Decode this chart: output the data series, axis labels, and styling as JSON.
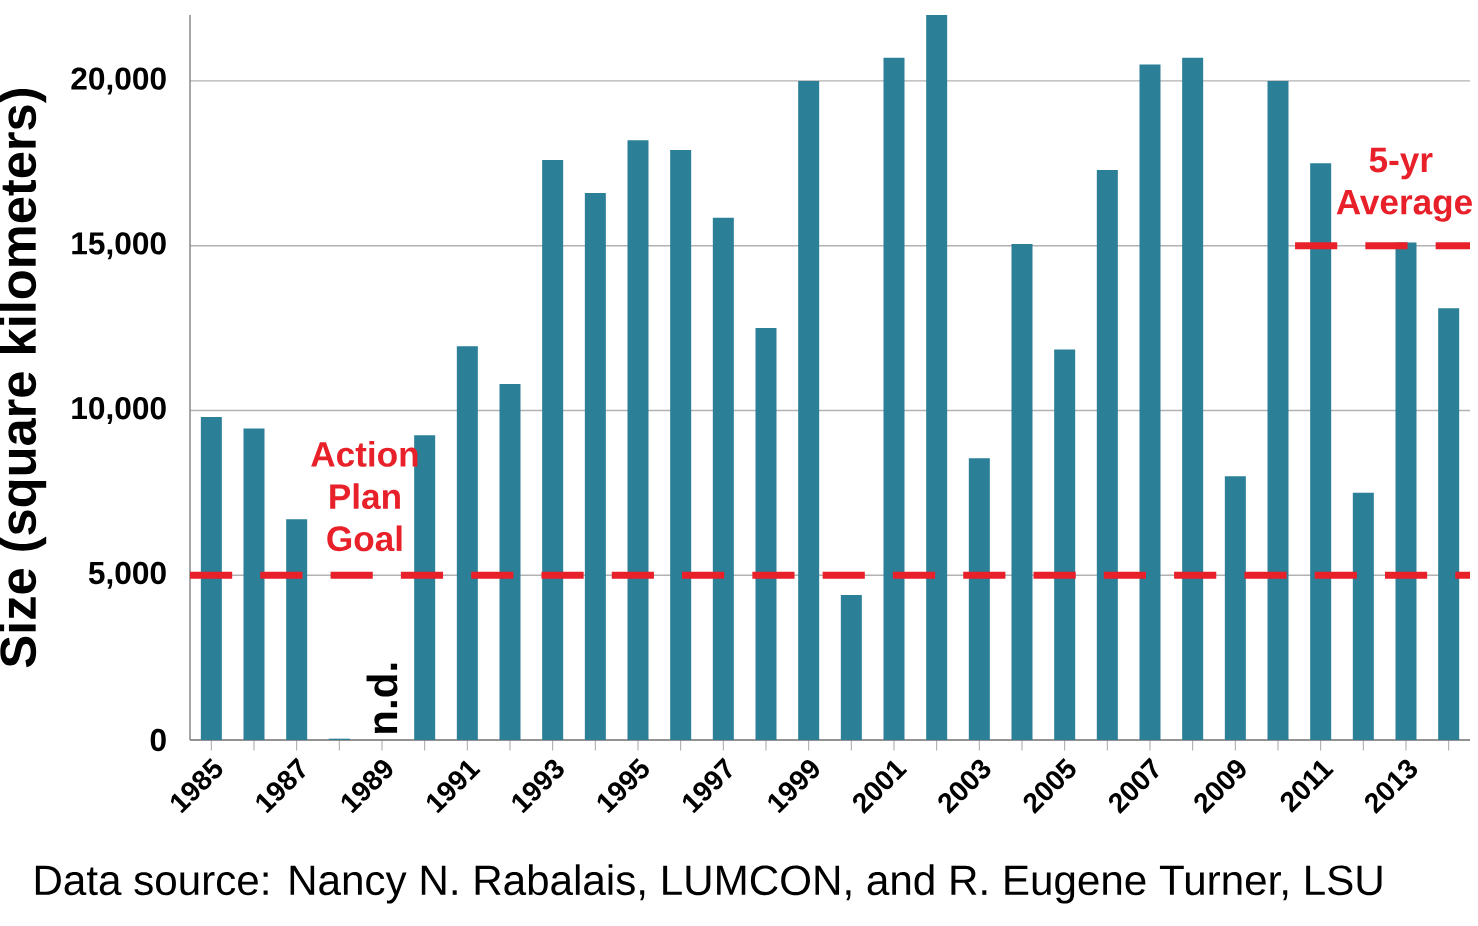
{
  "chart_data": {
    "type": "bar",
    "ylabel": "Size (square kilometers)",
    "categories": [
      "1985",
      null,
      "1987",
      null,
      "1989",
      null,
      "1991",
      null,
      "1993",
      null,
      "1995",
      null,
      "1997",
      null,
      "1999",
      null,
      "2001",
      null,
      "2003",
      null,
      "2005",
      null,
      "2007",
      null,
      "2009",
      null,
      "2011",
      null,
      "2013",
      null
    ],
    "values": [
      9800,
      9450,
      6700,
      40,
      null,
      9250,
      11950,
      10800,
      17600,
      16600,
      18200,
      17900,
      15850,
      12500,
      20000,
      4400,
      20700,
      22000,
      8550,
      15050,
      11850,
      17300,
      20500,
      20700,
      8000,
      20000,
      17500,
      7500,
      15100,
      13100
    ],
    "color": "#2b7f97",
    "ylim": [
      0,
      22000
    ],
    "yticks": [
      0,
      {
        "value": 5000,
        "label": "5,000"
      },
      {
        "value": 10000,
        "label": "10,000"
      },
      {
        "value": 15000,
        "label": "15,000"
      },
      {
        "value": 20000,
        "label": "20,000"
      }
    ],
    "grid": "y",
    "ref_lines": [
      {
        "axis": "y",
        "value": 5000,
        "label": "Action Plan Goal",
        "color": "#e8202a",
        "line_style": "dashed"
      },
      {
        "axis": "y",
        "value": 15000,
        "label": "5-yr Average",
        "color": "#e8202a",
        "line_style": "dashed"
      }
    ],
    "annotations": [
      "n.d.",
      "Data source: Nancy N. Rabalais, LUMCON, and R. Eugene Turner, LSU"
    ]
  }
}
